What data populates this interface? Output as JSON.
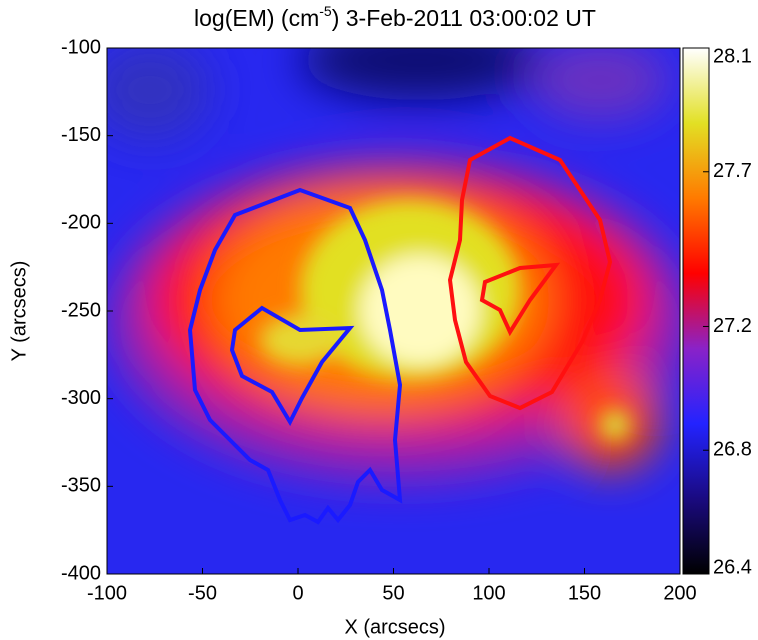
{
  "chart_data": {
    "type": "image",
    "title": [
      "log(EM) (cm",
      "-5",
      ") 3-Feb-2011 03:00:02 UT"
    ],
    "xlabel": "X (arcsecs)",
    "ylabel": "Y (arcsecs)",
    "xlim": [
      -100,
      200
    ],
    "xticks": [
      -100,
      -50,
      0,
      50,
      100,
      150,
      200
    ],
    "ylim": [
      -400,
      -100
    ],
    "yticks": [
      -400,
      -350,
      -300,
      -250,
      -200,
      -150,
      -100
    ],
    "colorbar": {
      "lim": [
        26.4,
        28.1
      ],
      "ticks": [
        26.4,
        26.8,
        27.2,
        27.7,
        28.1
      ],
      "colormap": [
        "#000000",
        "#1a0a80",
        "#2323ff",
        "#8a22c8",
        "#ff0000",
        "#ff7a00",
        "#e2e024",
        "#ffffff"
      ]
    }
  }
}
